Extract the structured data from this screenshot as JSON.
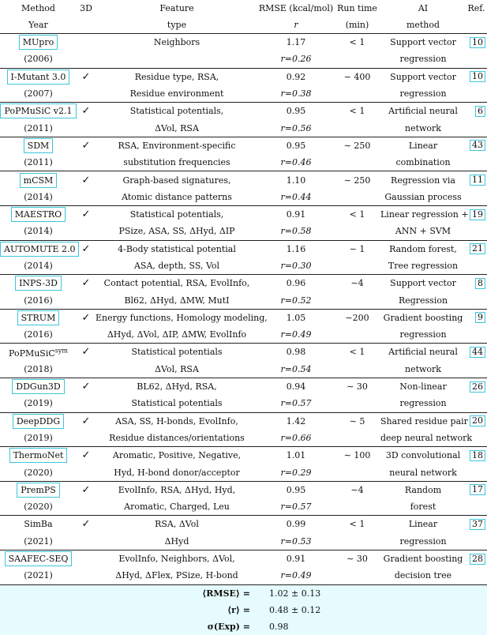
{
  "header": {
    "method": "Method",
    "year": "Year",
    "three_d": "3D",
    "feature": "Feature",
    "feature_type": "type",
    "rmse": "RMSE (kcal/mol)",
    "r": "r",
    "run_time": "Run time",
    "run_unit": "(min)",
    "ai": "AI",
    "ai_method": "method",
    "ref": "Ref."
  },
  "rows": [
    {
      "method": "MUpro",
      "boxed": true,
      "year": "(2006)",
      "check": "",
      "feature1": "Neighbors",
      "feature2": "",
      "rmse": "1.17",
      "r": "r=0.26",
      "run": "< 1",
      "ai1": "Support vector",
      "ai2": "regression",
      "ref": "10"
    },
    {
      "method": "I-Mutant 3.0",
      "boxed": true,
      "year": "(2007)",
      "check": "✓",
      "feature1": "Residue type, RSA,",
      "feature2": "Residue environment",
      "rmse": "0.92",
      "r": "r=0.38",
      "run": "∼ 400",
      "ai1": "Support vector",
      "ai2": "regression",
      "ref": "10"
    },
    {
      "method": "PoPMuSiC v2.1",
      "boxed": true,
      "year": "(2011)",
      "check": "✓",
      "feature1": "Statistical potentials,",
      "feature2": "ΔVol, RSA",
      "rmse": "0.95",
      "r": "r=0.56",
      "run": "< 1",
      "ai1": "Artificial neural",
      "ai2": "network",
      "ref": "6"
    },
    {
      "method": "SDM",
      "boxed": true,
      "year": "(2011)",
      "check": "✓",
      "feature1": "RSA, Environment-specific",
      "feature2": "substitution frequencies",
      "rmse": "0.95",
      "r": "r=0.46",
      "run": "∼ 250",
      "ai1": "Linear",
      "ai2": "combination",
      "ref": "43"
    },
    {
      "method": "mCSM",
      "boxed": true,
      "year": "(2014)",
      "check": "✓",
      "feature1": "Graph-based signatures,",
      "feature2": "Atomic distance patterns",
      "rmse": "1.10",
      "r": "r=0.44",
      "run": "∼ 250",
      "ai1": "Regression via",
      "ai2": "Gaussian process",
      "ref": "11"
    },
    {
      "method": "MAESTRO",
      "boxed": true,
      "year": "(2014)",
      "check": "✓",
      "feature1": "Statistical potentials,",
      "feature2": "PSize, ASA, SS, ΔHyd, ΔIP",
      "rmse": "0.91",
      "r": "r=0.58",
      "run": "< 1",
      "ai1": "Linear regression +",
      "ai2": "ANN + SVM",
      "ref": "19"
    },
    {
      "method": "AUTOMUTE 2.0",
      "boxed": true,
      "year": "(2014)",
      "check": "✓",
      "feature1": "4-Body statistical potential",
      "feature2": "ASA, depth, SS, Vol",
      "rmse": "1.16",
      "r": "r=0.30",
      "run": "∼ 1",
      "ai1": "Random forest,",
      "ai2": "Tree regression",
      "ref": "21"
    },
    {
      "method": "INPS-3D",
      "boxed": true,
      "year": "(2016)",
      "check": "✓",
      "feature1": "Contact potential, RSA, EvolInfo,",
      "feature2": "Bl62, ΔHyd, ΔMW, MutI",
      "rmse": "0.96",
      "r": "r=0.52",
      "run": "∼4",
      "ai1": "Support vector",
      "ai2": "Regression",
      "ref": "8"
    },
    {
      "method": "STRUM",
      "boxed": true,
      "year": "(2016)",
      "check": "✓",
      "feature1": "Energy functions, Homology modeling,",
      "feature2": "ΔHyd, ΔVol, ΔIP, ΔMW, EvolInfo",
      "rmse": "1.05",
      "r": "r=0.49",
      "run": "∼200",
      "ai1": "Gradient boosting",
      "ai2": "regression",
      "ref": "9"
    },
    {
      "method": "PoPMuSiC",
      "method_sup": "sym",
      "boxed": false,
      "year": "(2018)",
      "check": "✓",
      "feature1": "Statistical potentials",
      "feature2": "ΔVol, RSA",
      "rmse": "0.98",
      "r": "r=0.54",
      "run": "< 1",
      "ai1": "Artificial neural",
      "ai2": "network",
      "ref": "44"
    },
    {
      "method": "DDGun3D",
      "boxed": true,
      "year": "(2019)",
      "check": "✓",
      "feature1": "BL62, ΔHyd, RSA,",
      "feature2": "Statistical potentials",
      "rmse": "0.94",
      "r": "r=0.57",
      "run": "∼ 30",
      "ai1": "Non-linear",
      "ai2": "regression",
      "ref": "26"
    },
    {
      "method": "DeepDDG",
      "boxed": true,
      "year": "(2019)",
      "check": "✓",
      "feature1": "ASA, SS, H-bonds, EvolInfo,",
      "feature2": "Residue distances/orientations",
      "rmse": "1.42",
      "r": "r=0.66",
      "run": "∼ 5",
      "ai1": "Shared residue pair",
      "ai2": "deep neural network",
      "ref": "20"
    },
    {
      "method": "ThermoNet",
      "boxed": true,
      "year": "(2020)",
      "check": "✓",
      "feature1": "Aromatic, Positive, Negative,",
      "feature2": "Hyd, H-bond donor/acceptor",
      "rmse": "1.01",
      "r": "r=0.29",
      "run": "∼ 100",
      "ai1": "3D convolutional",
      "ai2": "neural network",
      "ref": "18"
    },
    {
      "method": "PremPS",
      "boxed": true,
      "year": "(2020)",
      "check": "✓",
      "feature1": "EvolInfo, RSA, ΔHyd, Hyd,",
      "feature2": "Aromatic, Charged, Leu",
      "rmse": "0.95",
      "r": "r=0.57",
      "run": "∼4",
      "ai1": "Random",
      "ai2": "forest",
      "ref": "17"
    },
    {
      "method": "SimBa",
      "boxed": false,
      "year": "(2021)",
      "check": "✓",
      "feature1": "RSA, ΔVol",
      "feature2": "ΔHyd",
      "rmse": "0.99",
      "r": "r=0.53",
      "run": "< 1",
      "ai1": "Linear",
      "ai2": "regression",
      "ref": "37"
    },
    {
      "method": "SAAFEC-SEQ",
      "boxed": true,
      "year": "(2021)",
      "check": "",
      "feature1": "EvolInfo, Neighbors, ΔVol,",
      "feature2": "ΔHyd, ΔFlex, PSize, H-bond",
      "rmse": "0.91",
      "r": "r=0.49",
      "run": "∼ 30",
      "ai1": "Gradient boosting",
      "ai2": "decision tree",
      "ref": "28"
    }
  ],
  "summary": [
    {
      "label": "⟨RMSE⟩ =",
      "value": "1.02 ± 0.13"
    },
    {
      "label": "⟨r⟩ =",
      "value": "0.48 ± 0.12"
    },
    {
      "label": "σ(Exp) =",
      "value": "0.98"
    }
  ],
  "colors": {
    "box_border": "#3cc6dc",
    "summary_bg": "#e5fbfd"
  }
}
